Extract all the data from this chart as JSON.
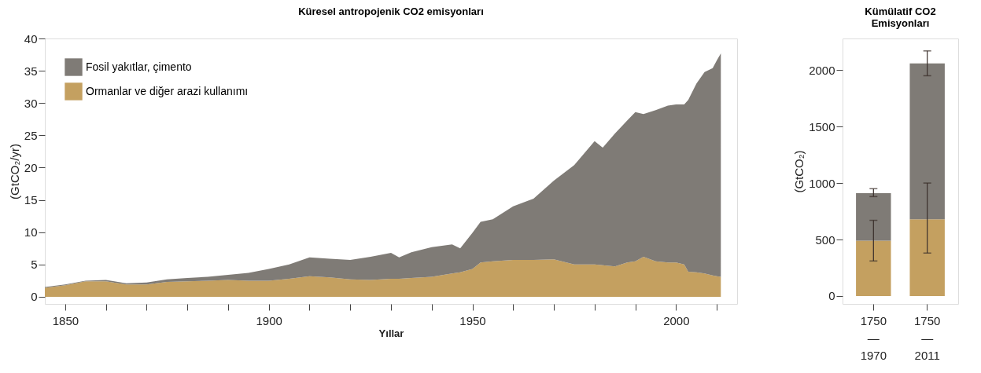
{
  "chart_data": [
    {
      "type": "area",
      "title": "Küresel antropojenik CO2 emisyonları",
      "xlabel": "Yıllar",
      "ylabel": "(GtCO₂/yr)",
      "stacked": true,
      "legend": "top left",
      "grid": false,
      "x": [
        1845,
        1850,
        1855,
        1860,
        1865,
        1870,
        1875,
        1880,
        1885,
        1890,
        1895,
        1900,
        1905,
        1910,
        1915,
        1920,
        1925,
        1930,
        1932,
        1935,
        1940,
        1945,
        1947,
        1950,
        1952,
        1955,
        1960,
        1965,
        1970,
        1975,
        1980,
        1982,
        1985,
        1988,
        1990,
        1992,
        1995,
        1998,
        2000,
        2002,
        2003,
        2005,
        2007,
        2009,
        2010,
        2011
      ],
      "series": [
        {
          "name": "Ormanlar ve diğer arazi kullanımı",
          "color": "#c4a060",
          "values": [
            1.4,
            1.8,
            2.4,
            2.4,
            1.9,
            1.9,
            2.3,
            2.4,
            2.5,
            2.6,
            2.5,
            2.5,
            2.8,
            3.2,
            3.0,
            2.7,
            2.6,
            2.8,
            2.8,
            2.9,
            3.1,
            3.6,
            3.8,
            4.3,
            5.3,
            5.5,
            5.7,
            5.7,
            5.8,
            5.0,
            5.0,
            4.9,
            4.7,
            5.3,
            5.5,
            6.2,
            5.5,
            5.3,
            5.3,
            5.0,
            3.9,
            3.8,
            3.6,
            3.3,
            3.2,
            3.1
          ]
        },
        {
          "name": "Fosil yakıtlar, çimento",
          "color": "#7f7b76",
          "values": [
            0.1,
            0.1,
            0.1,
            0.2,
            0.2,
            0.3,
            0.4,
            0.5,
            0.6,
            0.8,
            1.2,
            1.8,
            2.2,
            2.9,
            2.9,
            3.0,
            3.6,
            4.0,
            3.3,
            4.0,
            4.6,
            4.5,
            3.7,
            5.6,
            6.3,
            6.5,
            8.3,
            9.5,
            12.2,
            15.4,
            19.1,
            18.2,
            20.6,
            22.0,
            23.1,
            22.1,
            23.4,
            24.3,
            24.5,
            24.8,
            26.6,
            29.2,
            31.2,
            32.1,
            33.4,
            34.6
          ]
        }
      ],
      "xlim": [
        1845,
        2015
      ],
      "xticks": [
        1850,
        {
          "value": 1860,
          "label": null
        },
        {
          "value": 1870,
          "label": null
        },
        {
          "value": 1880,
          "label": null
        },
        {
          "value": 1890,
          "label": null
        },
        1900,
        {
          "value": 1910,
          "label": null
        },
        {
          "value": 1920,
          "label": null
        },
        {
          "value": 1930,
          "label": null
        },
        {
          "value": 1940,
          "label": null
        },
        1950,
        {
          "value": 1960,
          "label": null
        },
        {
          "value": 1970,
          "label": null
        },
        {
          "value": 1980,
          "label": null
        },
        {
          "value": 1990,
          "label": null
        },
        2000,
        {
          "value": 2010,
          "label": null
        }
      ],
      "ylim": [
        -1.1,
        40
      ],
      "yticks": [
        0,
        5,
        10,
        15,
        20,
        25,
        30,
        35,
        40
      ]
    },
    {
      "type": "bar",
      "title": "Kümülatif CO2 Emisyonları",
      "ylabel": "(GtCO₂)",
      "stacked": true,
      "grid": false,
      "categories": [
        "1750\n—\n1970",
        "1750\n—\n2011"
      ],
      "series": [
        {
          "color": "#c4a060",
          "values": [
            490,
            680
          ],
          "errors": [
            [
              310,
              670
            ],
            [
              380,
              1000
            ]
          ]
        },
        {
          "color": "#7f7b76",
          "values": [
            420,
            1380
          ],
          "errors": [
            [
              880,
              950
            ],
            [
              1950,
              2170
            ]
          ]
        }
      ],
      "ylim": [
        -70,
        2280
      ],
      "yticks": [
        0,
        500,
        1000,
        1500,
        2000
      ]
    }
  ]
}
